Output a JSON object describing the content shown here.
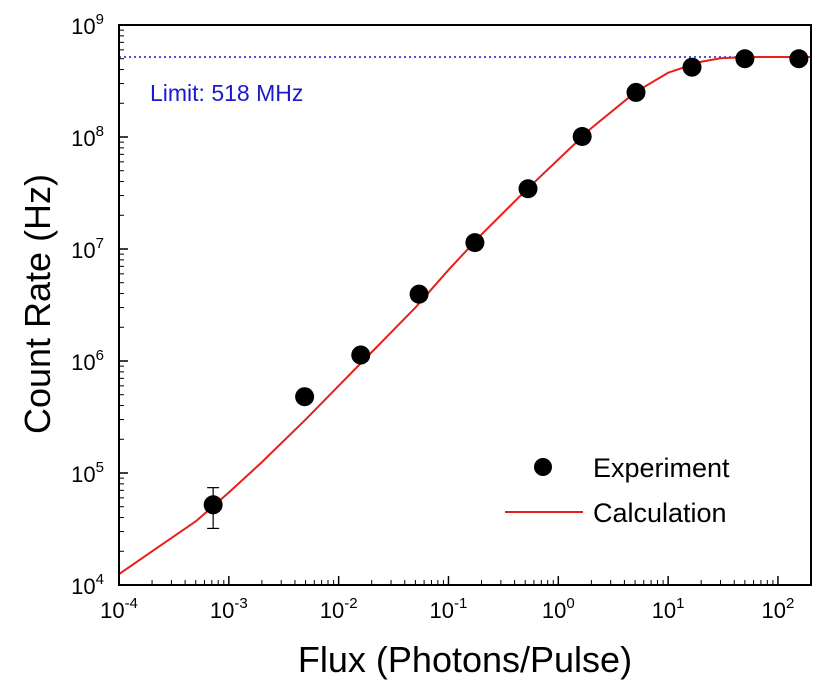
{
  "chart_data": {
    "type": "scatter",
    "title": "",
    "xlabel": "Flux (Photons/Pulse)",
    "ylabel": "Count Rate (Hz)",
    "x_scale": "log",
    "y_scale": "log",
    "xlim": [
      0.0001,
      200
    ],
    "ylim": [
      10000,
      1000000000
    ],
    "x_ticks": [
      {
        "value": 0.0001,
        "base": "10",
        "exp": "-4"
      },
      {
        "value": 0.001,
        "base": "10",
        "exp": "-3"
      },
      {
        "value": 0.01,
        "base": "10",
        "exp": "-2"
      },
      {
        "value": 0.1,
        "base": "10",
        "exp": "-1"
      },
      {
        "value": 1,
        "base": "10",
        "exp": "0"
      },
      {
        "value": 10,
        "base": "10",
        "exp": "1"
      },
      {
        "value": 100,
        "base": "10",
        "exp": "2"
      }
    ],
    "y_ticks": [
      {
        "value": 10000,
        "base": "10",
        "exp": "4"
      },
      {
        "value": 100000,
        "base": "10",
        "exp": "5"
      },
      {
        "value": 1000000,
        "base": "10",
        "exp": "6"
      },
      {
        "value": 10000000,
        "base": "10",
        "exp": "7"
      },
      {
        "value": 100000000,
        "base": "10",
        "exp": "8"
      },
      {
        "value": 1000000000,
        "base": "10",
        "exp": "9"
      }
    ],
    "grid": false,
    "legend_position": "bottom-right",
    "limit": {
      "value": 518000000,
      "label": "Limit: 518 MHz",
      "color": "#1a1acc"
    },
    "series": [
      {
        "name": "Experiment",
        "kind": "scatter",
        "color": "#000000",
        "points": [
          {
            "x": 0.00072,
            "y": 52000,
            "err_low": 32000,
            "err_high": 74000
          },
          {
            "x": 0.0049,
            "y": 480000
          },
          {
            "x": 0.0159,
            "y": 1130000
          },
          {
            "x": 0.054,
            "y": 3950000
          },
          {
            "x": 0.174,
            "y": 11400000
          },
          {
            "x": 0.53,
            "y": 34500000
          },
          {
            "x": 1.65,
            "y": 101000000
          },
          {
            "x": 5.1,
            "y": 250000000
          },
          {
            "x": 16.5,
            "y": 420000000
          },
          {
            "x": 50,
            "y": 500000000
          },
          {
            "x": 155,
            "y": 500000000
          }
        ]
      },
      {
        "name": "Calculation",
        "kind": "line",
        "color": "#e8201a",
        "points": [
          {
            "x": 0.0001,
            "y": 12500
          },
          {
            "x": 0.0002,
            "y": 20000
          },
          {
            "x": 0.0005,
            "y": 37000
          },
          {
            "x": 0.001,
            "y": 67000
          },
          {
            "x": 0.002,
            "y": 125000
          },
          {
            "x": 0.005,
            "y": 300000
          },
          {
            "x": 0.01,
            "y": 600000
          },
          {
            "x": 0.02,
            "y": 1200000
          },
          {
            "x": 0.05,
            "y": 3000000
          },
          {
            "x": 0.1,
            "y": 6500000
          },
          {
            "x": 0.2,
            "y": 13500000
          },
          {
            "x": 0.5,
            "y": 33000000
          },
          {
            "x": 1,
            "y": 63000000
          },
          {
            "x": 2,
            "y": 120000000
          },
          {
            "x": 5,
            "y": 250000000
          },
          {
            "x": 10,
            "y": 375000000
          },
          {
            "x": 20,
            "y": 470000000
          },
          {
            "x": 30,
            "y": 505000000
          },
          {
            "x": 50,
            "y": 517000000
          },
          {
            "x": 100,
            "y": 518000000
          },
          {
            "x": 200,
            "y": 518000000
          }
        ]
      }
    ]
  }
}
